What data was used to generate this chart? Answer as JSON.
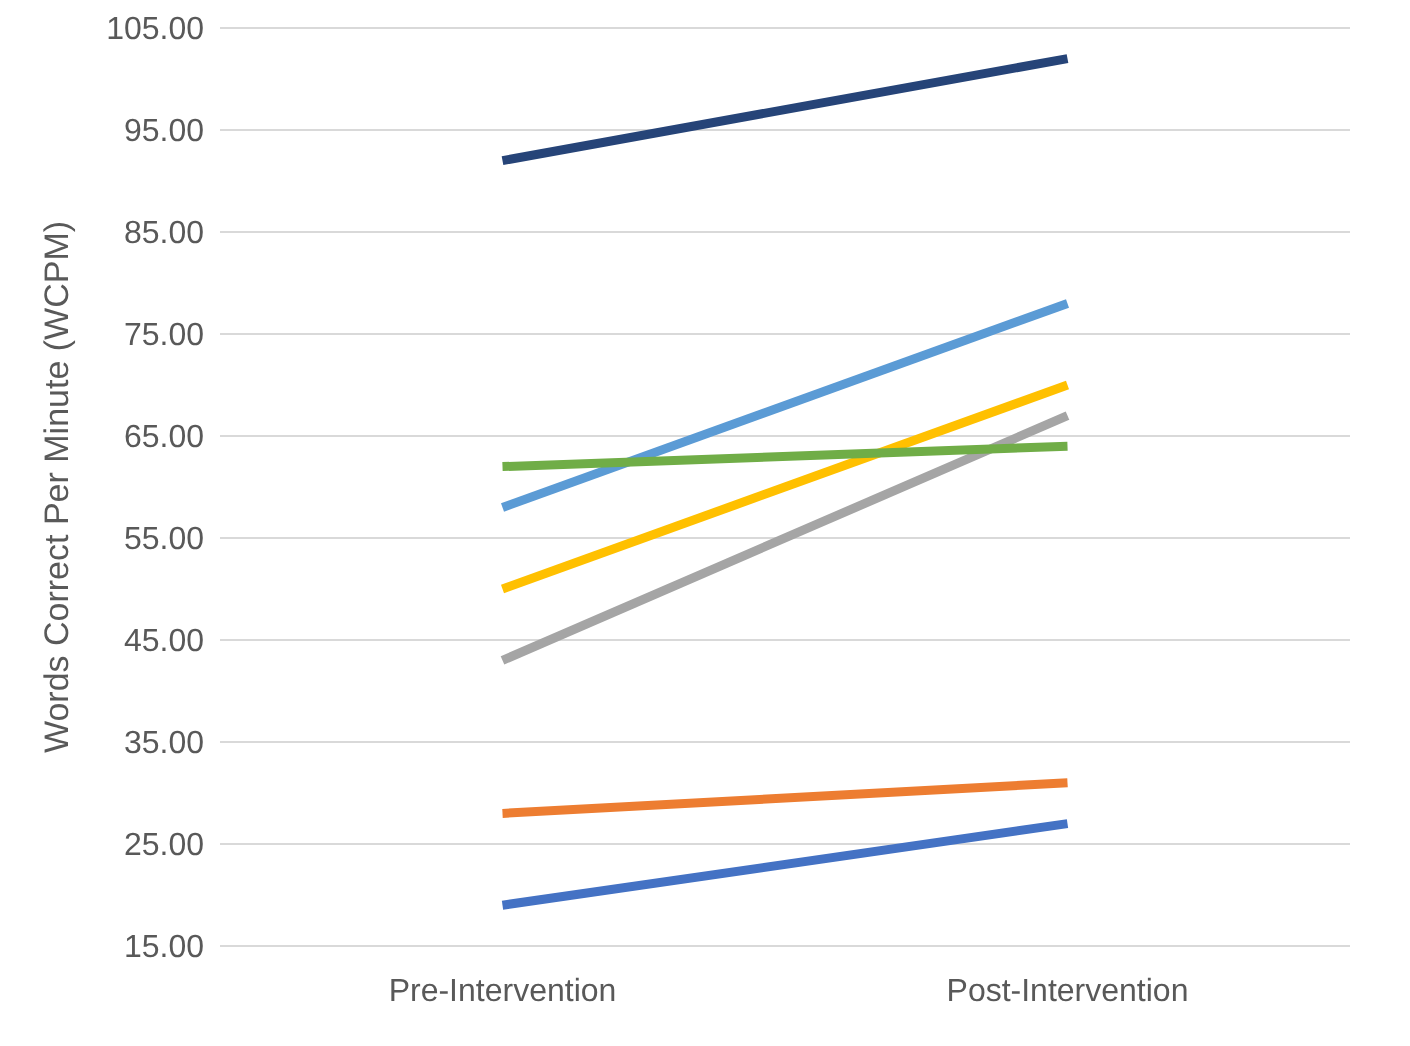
{
  "chart_data": {
    "type": "line",
    "ylabel": "Words Correct Per Minute (WCPM)",
    "categories": [
      "Pre-Intervention",
      "Post-Intervention"
    ],
    "series": [
      {
        "color": "#264478",
        "values": [
          92,
          102
        ]
      },
      {
        "color": "#5b9bd5",
        "values": [
          58,
          78
        ]
      },
      {
        "color": "#ffc000",
        "values": [
          50,
          70
        ]
      },
      {
        "color": "#a5a5a5",
        "values": [
          43,
          67
        ]
      },
      {
        "color": "#70ad47",
        "values": [
          62,
          64
        ]
      },
      {
        "color": "#ed7d31",
        "values": [
          28,
          31
        ]
      },
      {
        "color": "#4472c4",
        "values": [
          19,
          27
        ]
      }
    ],
    "ylim": [
      15,
      105
    ],
    "yticks": [
      {
        "value": 15,
        "label": "15.00"
      },
      {
        "value": 25,
        "label": "25.00"
      },
      {
        "value": 35,
        "label": "35.00"
      },
      {
        "value": 45,
        "label": "45.00"
      },
      {
        "value": 55,
        "label": "55.00"
      },
      {
        "value": 65,
        "label": "65.00"
      },
      {
        "value": 75,
        "label": "75.00"
      },
      {
        "value": 85,
        "label": "85.00"
      },
      {
        "value": 95,
        "label": "95.00"
      },
      {
        "value": 105,
        "label": "105.00"
      }
    ],
    "grid": "y",
    "legend": false,
    "marker": "none",
    "line_style": "solid"
  }
}
